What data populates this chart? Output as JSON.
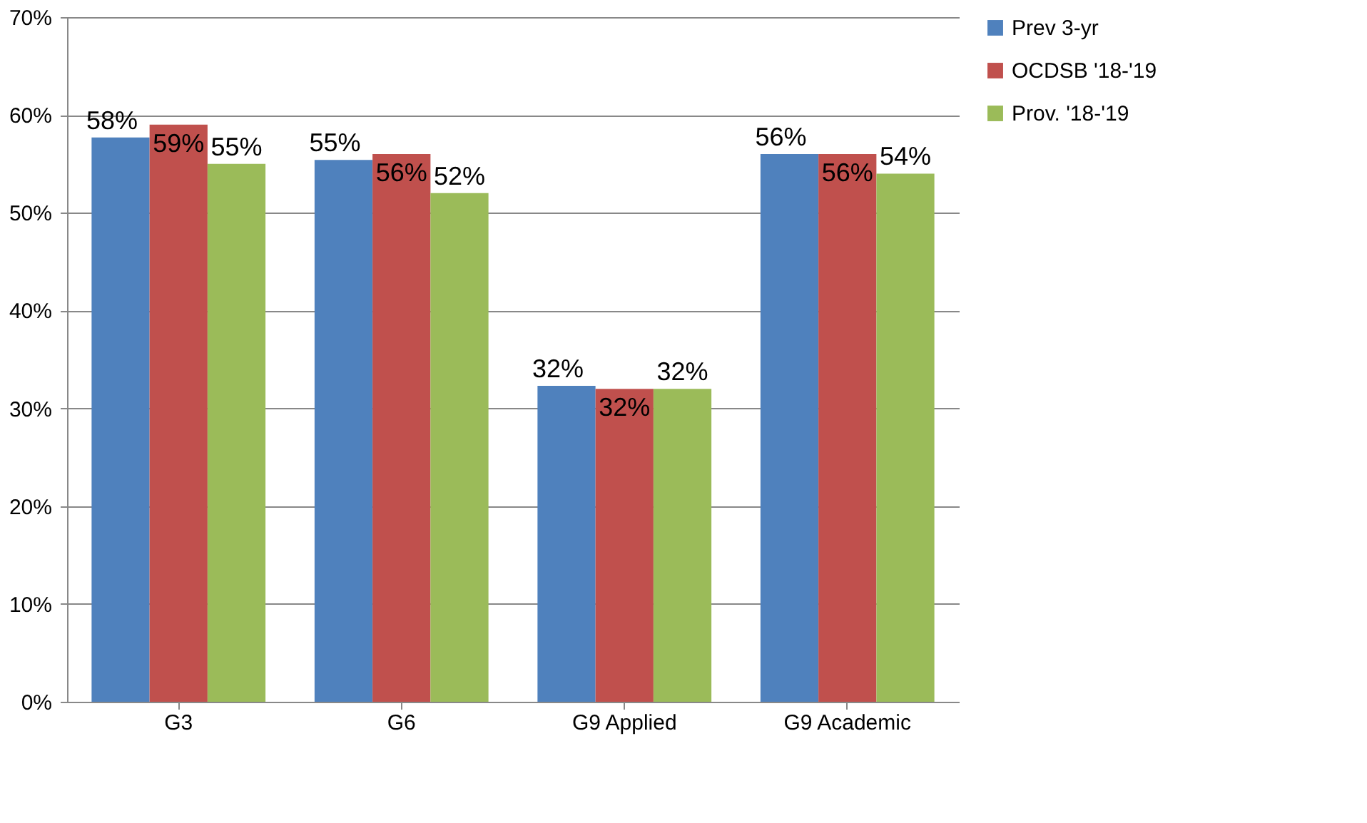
{
  "chart_data": {
    "type": "bar",
    "categories": [
      "G3",
      "G6",
      "G9 Applied",
      "G9 Academic"
    ],
    "series": [
      {
        "name": "Prev 3-yr",
        "color": "#4f81bd",
        "values": [
          57.7,
          55.4,
          32.3,
          56
        ],
        "value_labels": [
          "58%",
          "55%",
          "32%",
          "56%"
        ]
      },
      {
        "name": "OCDSB '18-'19",
        "color": "#c0504d",
        "values": [
          59,
          56,
          32,
          56
        ],
        "value_labels": [
          "59%",
          "56%",
          "32%",
          "56%"
        ]
      },
      {
        "name": "Prov. '18-'19",
        "color": "#9bbb59",
        "values": [
          55,
          52,
          32,
          54
        ],
        "value_labels": [
          "55%",
          "52%",
          "32%",
          "54%"
        ]
      }
    ],
    "ylim": [
      0,
      70
    ],
    "yticks": [
      {
        "value": 0,
        "label": "0%"
      },
      {
        "value": 10,
        "label": "10%"
      },
      {
        "value": 20,
        "label": "20%"
      },
      {
        "value": 30,
        "label": "30%"
      },
      {
        "value": 40,
        "label": "40%"
      },
      {
        "value": 50,
        "label": "50%"
      },
      {
        "value": 60,
        "label": "60%"
      },
      {
        "value": 70,
        "label": "70%"
      }
    ],
    "grid": "y",
    "legend": "right"
  }
}
